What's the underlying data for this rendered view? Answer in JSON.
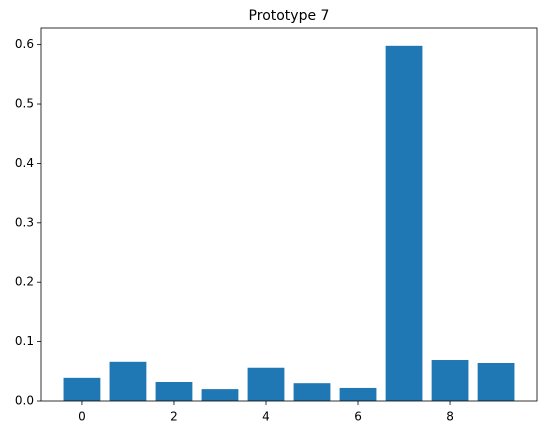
{
  "chart_data": {
    "type": "bar",
    "title": "Prototype 7",
    "x": [
      0,
      1,
      2,
      3,
      4,
      5,
      6,
      7,
      8,
      9
    ],
    "values": [
      0.039,
      0.066,
      0.032,
      0.02,
      0.056,
      0.03,
      0.022,
      0.598,
      0.069,
      0.064
    ],
    "color": "#1f77b4",
    "xlim": [
      -0.89,
      9.89
    ],
    "xticks": [
      0,
      2,
      4,
      6,
      8
    ],
    "ylim": [
      0,
      0.628
    ],
    "yticks": [
      {
        "value": 0,
        "label": "0.0"
      },
      0.1,
      0.2,
      0.3,
      0.4,
      0.5,
      0.6
    ],
    "grid": false
  }
}
